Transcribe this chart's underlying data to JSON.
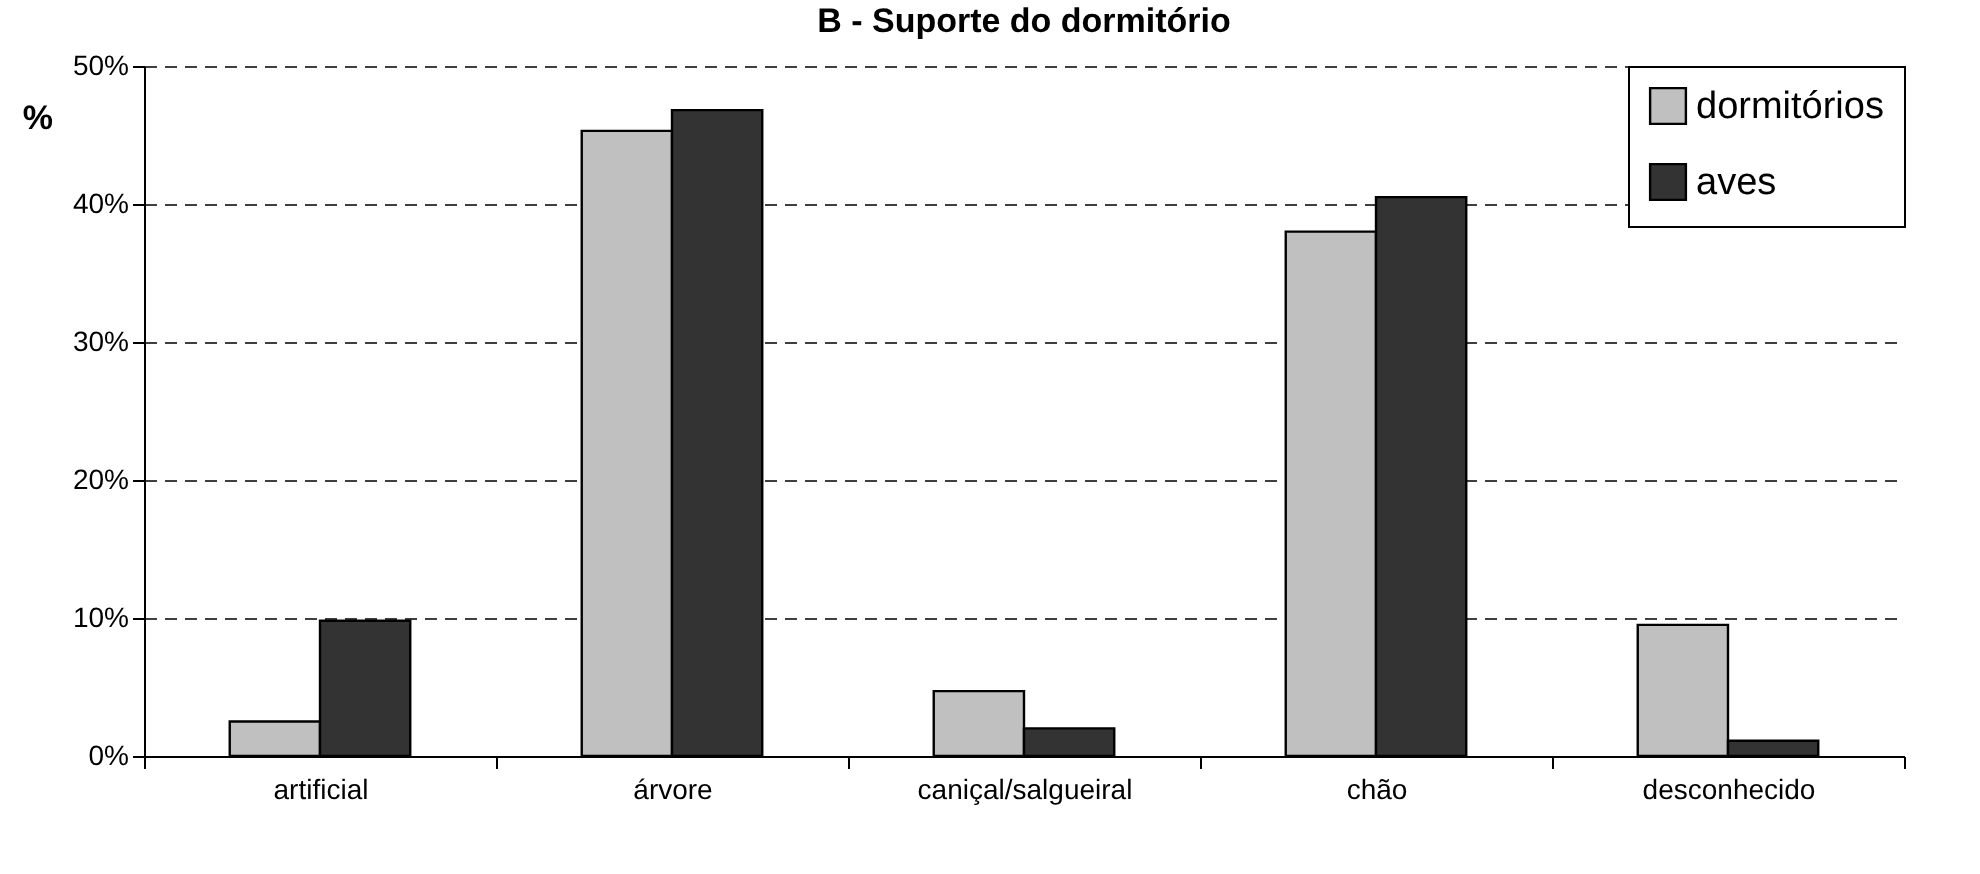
{
  "chart_data": {
    "type": "bar",
    "title": "B - Suporte do dormitório",
    "ylabel": "%",
    "categories": [
      "artificial",
      "árvore",
      "caniçal/salgueiral",
      "chão",
      "desconhecido"
    ],
    "series": [
      {
        "name": "dormitórios",
        "color": "#c0c0c0",
        "values": [
          2.5,
          45.3,
          4.7,
          38.0,
          9.5
        ]
      },
      {
        "name": "aves",
        "color": "#333333",
        "values": [
          9.8,
          46.8,
          2.0,
          40.5,
          1.1
        ]
      }
    ],
    "ylim": [
      0,
      50
    ],
    "yticks": [
      {
        "value": 0,
        "label": "0%"
      },
      {
        "value": 10,
        "label": "10%"
      },
      {
        "value": 20,
        "label": "20%"
      },
      {
        "value": 30,
        "label": "30%"
      },
      {
        "value": 40,
        "label": "40%"
      },
      {
        "value": 50,
        "label": "50%"
      }
    ],
    "grid": "y",
    "legend": "top right"
  }
}
